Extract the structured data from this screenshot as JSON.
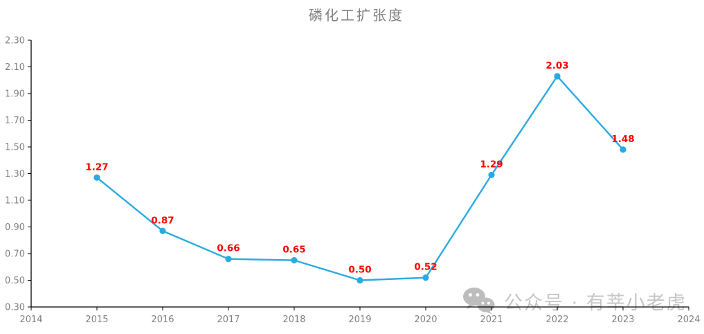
{
  "chart_data": {
    "type": "line",
    "title": "磷化工扩张度",
    "x": [
      2015,
      2016,
      2017,
      2018,
      2019,
      2020,
      2021,
      2022,
      2023
    ],
    "values": [
      1.27,
      0.87,
      0.66,
      0.65,
      0.5,
      0.52,
      1.29,
      2.03,
      1.48
    ],
    "point_labels": [
      "1.27",
      "0.87",
      "0.66",
      "0.65",
      "0.50",
      "0.52",
      "1.29",
      "2.03",
      "1.48"
    ],
    "xlim": [
      2014,
      2024
    ],
    "ylim": [
      0.3,
      2.3
    ],
    "x_tick_labels": [
      "2014",
      "2015",
      "2016",
      "2017",
      "2018",
      "2019",
      "2020",
      "2021",
      "2022",
      "2023",
      "2024"
    ],
    "y_tick_labels": [
      "0.30",
      "0.50",
      "0.70",
      "0.90",
      "1.10",
      "1.30",
      "1.50",
      "1.70",
      "1.90",
      "2.10",
      "2.30"
    ],
    "grid": false,
    "legend_position": "none",
    "colors": {
      "line": "#29ABE2",
      "marker": "#29ABE2",
      "point_label": "#FE0000",
      "axis": "#000000",
      "tick_label": "#808080",
      "title": "#7F7F7F"
    }
  },
  "watermark": {
    "text": "公众号 · 有莘小老虎",
    "icon": "wechat-icon",
    "color": "#C6C6C6"
  }
}
